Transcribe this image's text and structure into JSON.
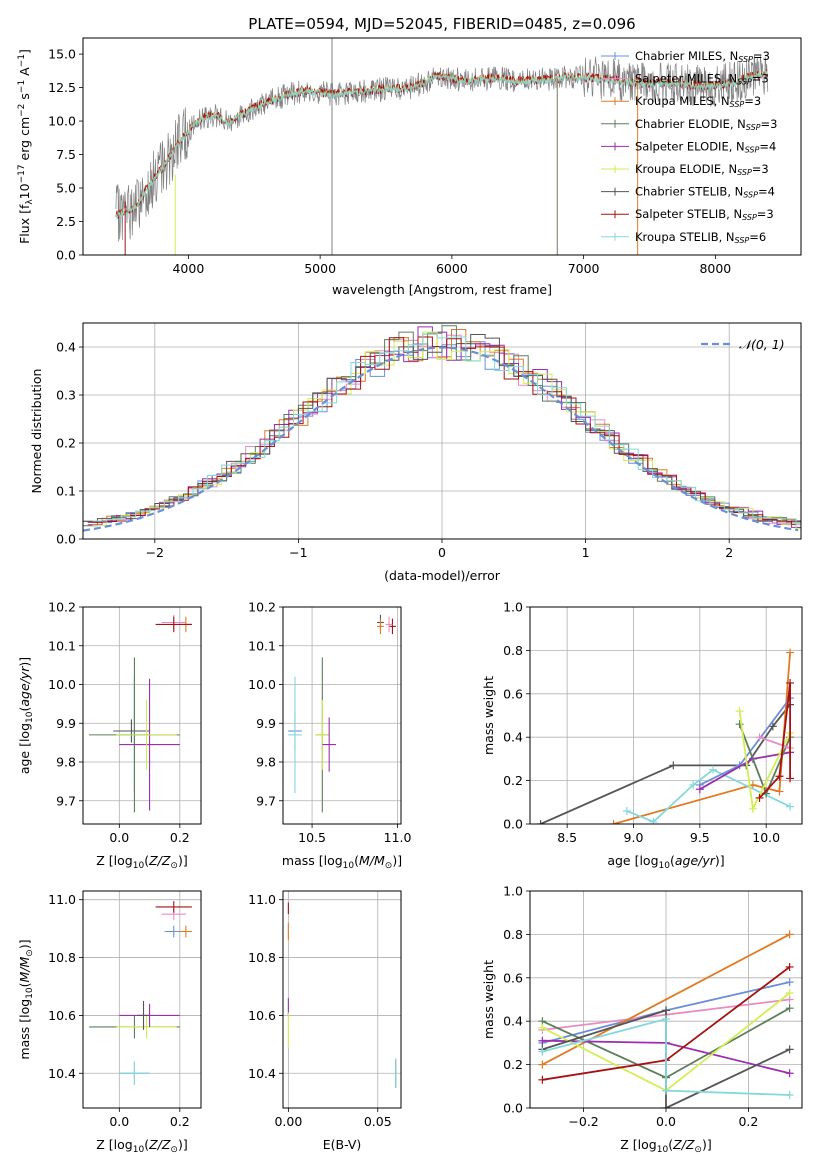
{
  "title": "PLATE=0594, MJD=52045, FIBERID=0485, z=0.096",
  "colors": {
    "Chabrier MILES": "#6a8fd8",
    "Salpeter MILES": "#e88cc4",
    "Kroupa MILES": "#e07b24",
    "Chabrier ELODIE": "#5b7f5b",
    "Salpeter ELODIE": "#9b2fae",
    "Kroupa ELODIE": "#d2ee52",
    "Chabrier STELIB": "#555555",
    "Salpeter STELIB": "#a61212",
    "Kroupa STELIB": "#84d8dc",
    "data": "#808080",
    "gaussian": "#6a8fd8"
  },
  "chart_data": [
    {
      "id": "spectrum",
      "type": "line",
      "xlabel": "wavelength [Angstrom, rest frame]",
      "ylabel": "Flux [f_λ10^-17 erg cm^-2 s^-1 A^-1]",
      "xlim": [
        3200,
        8650
      ],
      "ylim": [
        0,
        16.2
      ],
      "xticks": [
        "4000",
        "5000",
        "6000",
        "7000",
        "8000"
      ],
      "yticks": [
        "0.0",
        "2.5",
        "5.0",
        "7.5",
        "10.0",
        "12.5",
        "15.0"
      ],
      "grid": false,
      "legend_position": "right",
      "series": [
        {
          "name": "Chabrier MILES, N_SSP=3"
        },
        {
          "name": "Salpeter MILES, N_SSP=3"
        },
        {
          "name": "Kroupa MILES, N_SSP=3"
        },
        {
          "name": "Chabrier ELODIE, N_SSP=3"
        },
        {
          "name": "Salpeter ELODIE, N_SSP=4"
        },
        {
          "name": "Kroupa ELODIE, N_SSP=3"
        },
        {
          "name": "Chabrier STELIB, N_SSP=4"
        },
        {
          "name": "Salpeter STELIB, N_SSP=3"
        },
        {
          "name": "Kroupa STELIB, N_SSP=6"
        }
      ],
      "continuum_x": [
        3450,
        3600,
        3700,
        3800,
        3900,
        4000,
        4100,
        4200,
        4300,
        4500,
        4700,
        4900,
        5100,
        5300,
        5500,
        5700,
        5900,
        6100,
        6300,
        6500,
        6700,
        6900,
        7100,
        7300,
        7500,
        7700,
        7900,
        8100,
        8300,
        8400
      ],
      "continuum_y": [
        3.0,
        3.5,
        5.2,
        6.5,
        8.0,
        9.3,
        10.2,
        10.5,
        9.9,
        11.0,
        11.8,
        12.3,
        12.0,
        12.2,
        12.4,
        12.5,
        13.4,
        13.0,
        13.2,
        13.0,
        13.1,
        13.3,
        13.2,
        13.0,
        12.8,
        12.9,
        12.6,
        12.8,
        13.4,
        13.6
      ]
    },
    {
      "id": "residuals",
      "type": "step",
      "xlabel": "(data-model)/error",
      "ylabel": "Normed distribution",
      "xlim": [
        -2.5,
        2.5
      ],
      "ylim": [
        0,
        0.45
      ],
      "xticks": [
        "−2",
        "−1",
        "0",
        "1",
        "2"
      ],
      "yticks": [
        "0.0",
        "0.1",
        "0.2",
        "0.3",
        "0.4"
      ],
      "grid": true,
      "legend": "𝒩(0, 1)",
      "legend_position": "top-right",
      "bin_width": 0.1
    },
    {
      "id": "age-vs-Z",
      "type": "errorbar",
      "xlabel": "Z [log10(Z/Z☉)]",
      "ylabel": "age  [log10(age/yr)]",
      "xlim": [
        -0.12,
        0.27
      ],
      "ylim": [
        9.64,
        10.2
      ],
      "xticks": [
        "0.0",
        "0.2"
      ],
      "yticks": [
        "9.7",
        "9.8",
        "9.9",
        "10.0",
        "10.1",
        "10.2"
      ],
      "grid": true,
      "points": [
        {
          "series": "Chabrier MILES",
          "x": 0.05,
          "y": 9.87,
          "xerr": 0.05,
          "yerr": 0.15
        },
        {
          "series": "Kroupa STELIB",
          "x": 0.05,
          "y": 9.87,
          "xerr": 0.05,
          "yerr": 0.15
        },
        {
          "series": "Chabrier STELIB",
          "x": 0.04,
          "y": 9.88,
          "xerr": 0.06,
          "yerr": 0.03
        },
        {
          "series": "Chabrier ELODIE",
          "x": 0.05,
          "y": 9.87,
          "xerr": 0.15,
          "yerr": 0.2
        },
        {
          "series": "Salpeter ELODIE",
          "x": 0.1,
          "y": 9.845,
          "xerr": 0.1,
          "yerr": 0.17
        },
        {
          "series": "Kroupa ELODIE",
          "x": 0.09,
          "y": 9.87,
          "xerr": 0.1,
          "yerr": 0.09
        },
        {
          "series": "Salpeter MILES",
          "x": 0.18,
          "y": 10.16,
          "xerr": 0.04,
          "yerr": 0.02
        },
        {
          "series": "Kroupa MILES",
          "x": 0.22,
          "y": 10.155,
          "xerr": 0.02,
          "yerr": 0.02
        },
        {
          "series": "Salpeter STELIB",
          "x": 0.18,
          "y": 10.155,
          "xerr": 0.06,
          "yerr": 0.02
        }
      ]
    },
    {
      "id": "age-vs-mass",
      "type": "errorbar",
      "xlabel": "mass [log10(M/M☉)]",
      "ylabel": "",
      "xlim": [
        10.33,
        11.02
      ],
      "ylim": [
        9.64,
        10.2
      ],
      "xticks": [
        "10.5",
        "11.0"
      ],
      "yticks": [
        "9.7",
        "9.8",
        "9.9",
        "10.0",
        "10.1",
        "10.2"
      ],
      "grid": true,
      "points": [
        {
          "series": "Chabrier MILES",
          "x": 10.4,
          "y": 9.88,
          "xerr": 0.04,
          "yerr": 0.05
        },
        {
          "series": "Kroupa STELIB",
          "x": 10.4,
          "y": 9.87,
          "xerr": 0.04,
          "yerr": 0.15
        },
        {
          "series": "Chabrier ELODIE",
          "x": 10.56,
          "y": 9.87,
          "xerr": 0.04,
          "yerr": 0.2
        },
        {
          "series": "Kroupa ELODIE",
          "x": 10.56,
          "y": 9.87,
          "xerr": 0.04,
          "yerr": 0.09
        },
        {
          "series": "Salpeter ELODIE",
          "x": 10.6,
          "y": 9.845,
          "xerr": 0.04,
          "yerr": 0.07
        },
        {
          "series": "Chabrier STELIB",
          "x": 10.9,
          "y": 10.16,
          "xerr": 0.02,
          "yerr": 0.02
        },
        {
          "series": "Kroupa MILES",
          "x": 10.9,
          "y": 10.15,
          "xerr": 0.02,
          "yerr": 0.02
        },
        {
          "series": "Salpeter STELIB",
          "x": 10.97,
          "y": 10.15,
          "xerr": 0.02,
          "yerr": 0.02
        },
        {
          "series": "Salpeter MILES",
          "x": 10.95,
          "y": 10.155,
          "xerr": 0.02,
          "yerr": 0.02
        }
      ]
    },
    {
      "id": "weight-vs-age",
      "type": "line",
      "xlabel": "age  [log10(age/yr)]",
      "ylabel": "mass weight",
      "xlim": [
        8.22,
        10.27
      ],
      "ylim": [
        0,
        1.0
      ],
      "xticks": [
        "8.5",
        "9.0",
        "9.5",
        "10.0"
      ],
      "yticks": [
        "0.0",
        "0.2",
        "0.4",
        "0.6",
        "0.8",
        "1.0"
      ],
      "grid": true,
      "series": [
        {
          "series": "Chabrier STELIB",
          "x": [
            8.3,
            9.3,
            9.85,
            10.05,
            10.18
          ],
          "y": [
            0.0,
            0.27,
            0.27,
            0.45,
            0.55
          ]
        },
        {
          "series": "Kroupa MILES",
          "x": [
            8.85,
            9.9,
            10.1,
            10.18
          ],
          "y": [
            0.0,
            0.18,
            0.15,
            0.79
          ]
        },
        {
          "series": "Kroupa STELIB",
          "x": [
            8.95,
            9.15,
            9.45,
            9.6,
            10.18
          ],
          "y": [
            0.06,
            0.01,
            0.18,
            0.25,
            0.08
          ]
        },
        {
          "series": "Chabrier MILES",
          "x": [
            9.5,
            9.8,
            10.18
          ],
          "y": [
            0.18,
            0.27,
            0.58
          ]
        },
        {
          "series": "Salpeter ELODIE",
          "x": [
            9.5,
            9.9,
            10.18
          ],
          "y": [
            0.16,
            0.3,
            0.33
          ]
        },
        {
          "series": "Chabrier ELODIE",
          "x": [
            9.8,
            10.0,
            10.18
          ],
          "y": [
            0.46,
            0.14,
            0.4
          ]
        },
        {
          "series": "Kroupa ELODIE",
          "x": [
            9.8,
            9.9,
            10.18
          ],
          "y": [
            0.52,
            0.07,
            0.42
          ]
        },
        {
          "series": "Salpeter MILES",
          "x": [
            9.95,
            10.18
          ],
          "y": [
            0.4,
            0.35
          ]
        },
        {
          "series": "Salpeter STELIB",
          "x": [
            9.95,
            10.1,
            10.18,
            10.18
          ],
          "y": [
            0.12,
            0.22,
            0.65,
            0.21
          ]
        }
      ]
    },
    {
      "id": "mass-vs-Z",
      "type": "errorbar",
      "xlabel": "Z [log10(Z/Z☉)]",
      "ylabel": "mass [log10(M/M☉)]",
      "xlim": [
        -0.12,
        0.27
      ],
      "ylim": [
        10.28,
        11.03
      ],
      "xticks": [
        "0.0",
        "0.2"
      ],
      "yticks": [
        "10.4",
        "10.6",
        "10.8",
        "11.0"
      ],
      "grid": true,
      "points": [
        {
          "series": "Chabrier MILES",
          "x": 0.05,
          "y": 10.4,
          "xerr": 0.05,
          "yerr": 0.04
        },
        {
          "series": "Kroupa STELIB",
          "x": 0.05,
          "y": 10.4,
          "xerr": 0.05,
          "yerr": 0.04
        },
        {
          "series": "Chabrier ELODIE",
          "x": 0.05,
          "y": 10.56,
          "xerr": 0.15,
          "yerr": 0.04
        },
        {
          "series": "Kroupa ELODIE",
          "x": 0.09,
          "y": 10.56,
          "xerr": 0.1,
          "yerr": 0.04
        },
        {
          "series": "Salpeter ELODIE",
          "x": 0.1,
          "y": 10.6,
          "xerr": 0.1,
          "yerr": 0.04
        },
        {
          "series": "Chabrier STELIB",
          "x": 0.08,
          "y": 10.6,
          "xerr": 0.02,
          "yerr": 0.05
        },
        {
          "series": "Chabrier MILES",
          "x": 0.18,
          "y": 10.89,
          "xerr": 0.03,
          "yerr": 0.02
        },
        {
          "series": "Kroupa MILES",
          "x": 0.22,
          "y": 10.89,
          "xerr": 0.02,
          "yerr": 0.02
        },
        {
          "series": "Salpeter MILES",
          "x": 0.18,
          "y": 10.95,
          "xerr": 0.04,
          "yerr": 0.02
        },
        {
          "series": "Salpeter STELIB",
          "x": 0.18,
          "y": 10.975,
          "xerr": 0.06,
          "yerr": 0.02
        }
      ]
    },
    {
      "id": "mass-vs-EBV",
      "type": "errorbar",
      "xlabel": "E(B-V)",
      "ylabel": "",
      "xlim": [
        -0.003,
        0.063
      ],
      "ylim": [
        10.28,
        11.03
      ],
      "xticks": [
        "0.00",
        "0.05"
      ],
      "yticks": [
        "10.4",
        "10.6",
        "10.8",
        "11.0"
      ],
      "grid": true,
      "points": [
        {
          "series": "Salpeter STELIB",
          "x": 0.0,
          "y": 10.97,
          "xerr": 0,
          "yerr": 0.02
        },
        {
          "series": "Kroupa MILES",
          "x": 0.0,
          "y": 10.89,
          "xerr": 0,
          "yerr": 0.03
        },
        {
          "series": "Salpeter ELODIE",
          "x": 0.0,
          "y": 10.63,
          "xerr": 0,
          "yerr": 0.03
        },
        {
          "series": "Kroupa ELODIE",
          "x": 0.0,
          "y": 10.55,
          "xerr": 0,
          "yerr": 0.06
        },
        {
          "series": "Chabrier STELIB",
          "x": 0.06,
          "y": 10.4,
          "xerr": 0,
          "yerr": 0.05
        },
        {
          "series": "Kroupa STELIB",
          "x": 0.06,
          "y": 10.4,
          "xerr": 0,
          "yerr": 0.05
        }
      ]
    },
    {
      "id": "weight-vs-Z",
      "type": "line",
      "xlabel": "Z [log10(Z/Z☉)]",
      "ylabel": "mass weight",
      "xlim": [
        -0.33,
        0.33
      ],
      "ylim": [
        0,
        1.0
      ],
      "xticks": [
        "−0.2",
        "0.0",
        "0.2"
      ],
      "yticks": [
        "0.0",
        "0.2",
        "0.4",
        "0.6",
        "0.8",
        "1.0"
      ],
      "grid": true,
      "series": [
        {
          "series": "Chabrier MILES",
          "x": [
            -0.3,
            0.0,
            0.3
          ],
          "y": [
            0.3,
            0.45,
            0.58
          ]
        },
        {
          "series": "Salpeter MILES",
          "x": [
            -0.3,
            0.0,
            0.3
          ],
          "y": [
            0.36,
            0.43,
            0.5
          ]
        },
        {
          "series": "Kroupa MILES",
          "x": [
            -0.3,
            0.3
          ],
          "y": [
            0.2,
            0.8
          ]
        },
        {
          "series": "Chabrier ELODIE",
          "x": [
            -0.3,
            0.0,
            0.3
          ],
          "y": [
            0.4,
            0.14,
            0.46
          ]
        },
        {
          "series": "Salpeter ELODIE",
          "x": [
            -0.3,
            0.0,
            0.3
          ],
          "y": [
            0.31,
            0.3,
            0.16
          ]
        },
        {
          "series": "Kroupa ELODIE",
          "x": [
            -0.3,
            0.0,
            0.3
          ],
          "y": [
            0.37,
            0.08,
            0.53
          ]
        },
        {
          "series": "Chabrier STELIB",
          "x": [
            -0.3,
            0.0,
            0.0,
            0.3
          ],
          "y": [
            0.27,
            0.45,
            0.0,
            0.27
          ]
        },
        {
          "series": "Salpeter STELIB",
          "x": [
            -0.3,
            0.0,
            0.3
          ],
          "y": [
            0.13,
            0.22,
            0.65
          ]
        },
        {
          "series": "Kroupa STELIB",
          "x": [
            -0.3,
            0.0,
            0.0,
            0.3
          ],
          "y": [
            0.26,
            0.41,
            0.08,
            0.06
          ]
        }
      ]
    }
  ]
}
